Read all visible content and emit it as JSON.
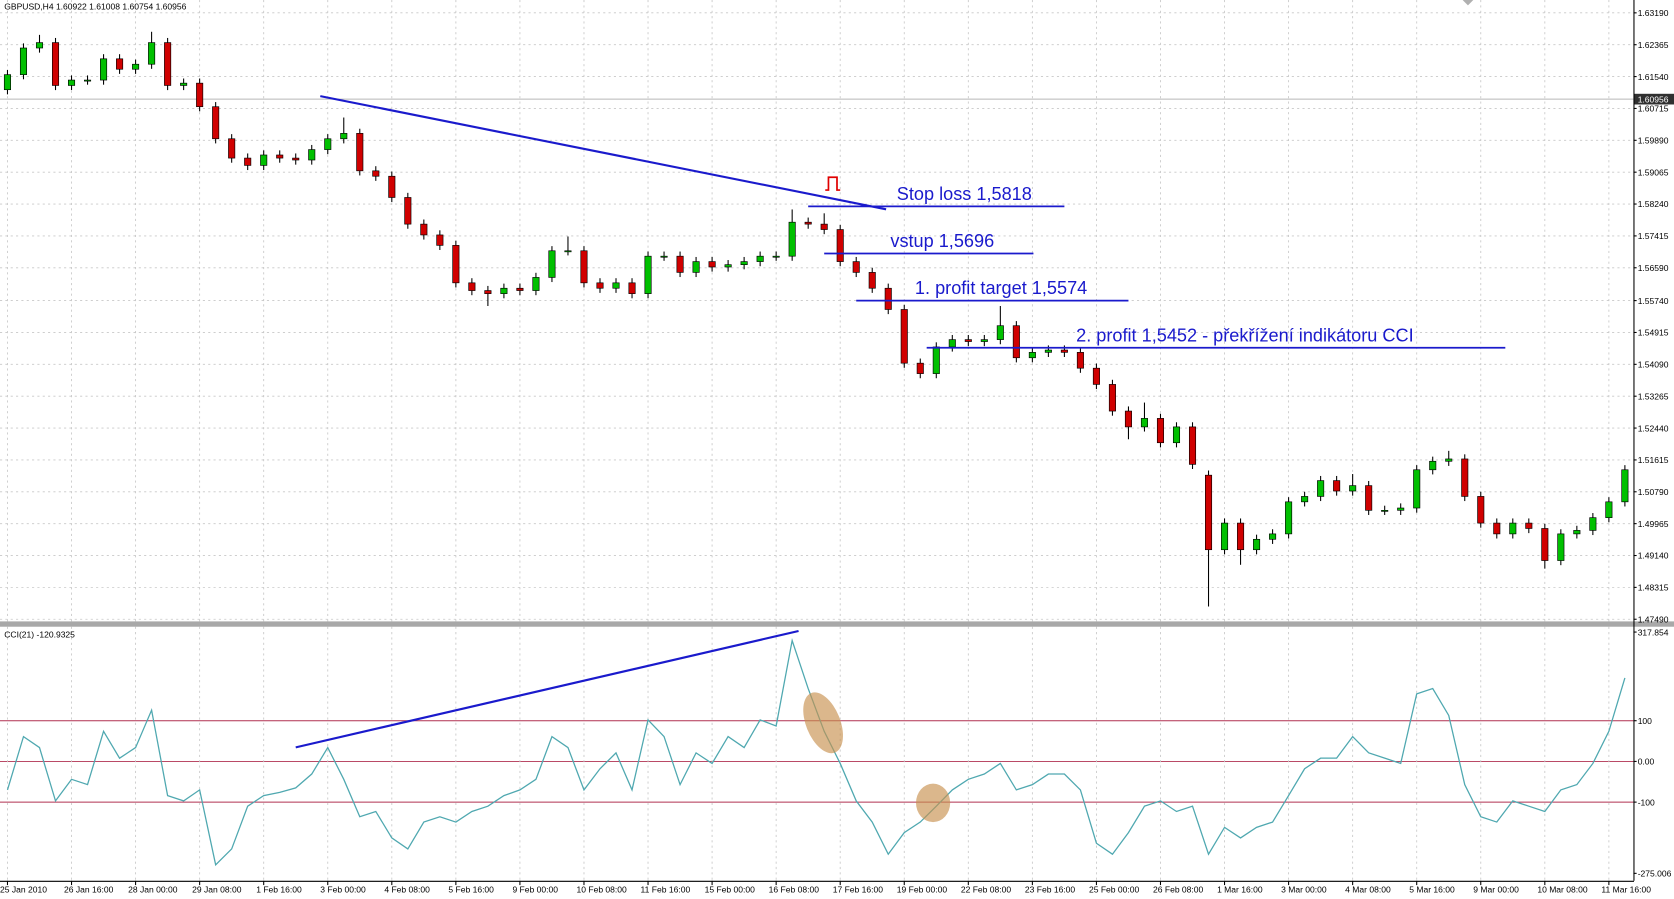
{
  "chart_data": [
    {
      "type": "candlestick",
      "title": "GBPUSD,H4  1.60922 1.61008 1.60754 1.60956",
      "up_color": "#00c000",
      "down_color": "#d00000",
      "wick_color": "#000000",
      "ylim": [
        1.4749,
        1.6319
      ],
      "yticks": [
        {
          "value": 1.6319,
          "label": "1.63190"
        },
        1.62365,
        {
          "value": 1.6154,
          "label": "1.61540"
        },
        1.60715,
        {
          "value": 1.5989,
          "label": "1.59890"
        },
        1.59065,
        {
          "value": 1.5824,
          "label": "1.58240"
        },
        1.57415,
        {
          "value": 1.5659,
          "label": "1.56590"
        },
        {
          "value": 1.5574,
          "label": "1.55740"
        },
        1.54915,
        {
          "value": 1.5409,
          "label": "1.54090"
        },
        1.53265,
        {
          "value": 1.5244,
          "label": "1.52440"
        },
        1.51615,
        {
          "value": 1.5079,
          "label": "1.50790"
        },
        1.49965,
        {
          "value": 1.4914,
          "label": "1.49140"
        },
        1.48315,
        {
          "value": 1.4749,
          "label": "1.47490"
        }
      ],
      "grid": true,
      "current_price": {
        "value": 1.60956,
        "label": "1.60956"
      },
      "open": [
        1.612,
        1.6159,
        1.6228,
        1.6242,
        1.6131,
        1.6145,
        1.6145,
        1.62,
        1.6173,
        1.6186,
        1.6242,
        1.6131,
        1.6137,
        1.6076,
        1.5993,
        1.5943,
        1.5924,
        1.5951,
        1.5943,
        1.5938,
        1.5965,
        1.5993,
        1.6007,
        1.591,
        1.5896,
        1.5841,
        1.5772,
        1.5744,
        1.5717,
        1.562,
        1.56,
        1.5592,
        1.5606,
        1.56,
        1.5634,
        1.5703,
        1.5703,
        1.562,
        1.5606,
        1.562,
        1.5592,
        1.5689,
        1.5689,
        1.5647,
        1.5675,
        1.5661,
        1.5667,
        1.5675,
        1.5689,
        1.5689,
        1.5777,
        1.5772,
        1.5758,
        1.5675,
        1.5647,
        1.5606,
        1.5551,
        1.5412,
        1.5385,
        1.5454,
        1.5473,
        1.5468,
        1.5473,
        1.5509,
        1.5426,
        1.544,
        1.5446,
        1.544,
        1.5399,
        1.5357,
        1.5288,
        1.5247,
        1.5269,
        1.5206,
        1.5247,
        1.5122,
        1.4929,
        1.4998,
        1.4929,
        1.4956,
        1.497,
        1.5053,
        1.5067,
        1.5108,
        1.5081,
        1.5095,
        1.5031,
        1.5031,
        1.5037,
        1.5136,
        1.5158,
        1.5164,
        1.5067,
        1.4998,
        1.497,
        1.4998,
        1.4984,
        1.4901,
        1.497,
        1.4979,
        1.5012,
        1.5053
      ],
      "high": [
        1.6171,
        1.624,
        1.6262,
        1.6254,
        1.6157,
        1.6157,
        1.6212,
        1.6212,
        1.6198,
        1.627,
        1.6254,
        1.6149,
        1.6149,
        1.6088,
        1.6005,
        1.5955,
        1.5963,
        1.5963,
        1.5955,
        1.5977,
        1.6005,
        1.6048,
        1.6019,
        1.5922,
        1.5908,
        1.5853,
        1.5784,
        1.5756,
        1.5729,
        1.5632,
        1.5612,
        1.5618,
        1.5618,
        1.5646,
        1.5715,
        1.574,
        1.5715,
        1.5632,
        1.5632,
        1.5632,
        1.5701,
        1.5701,
        1.5701,
        1.5687,
        1.5687,
        1.5679,
        1.5687,
        1.5701,
        1.5701,
        1.581,
        1.5789,
        1.58,
        1.577,
        1.5687,
        1.5659,
        1.5618,
        1.5563,
        1.5424,
        1.5466,
        1.5485,
        1.5485,
        1.5485,
        1.556,
        1.5521,
        1.5452,
        1.5458,
        1.5458,
        1.5452,
        1.5411,
        1.5369,
        1.53,
        1.531,
        1.5281,
        1.5259,
        1.5259,
        1.5134,
        1.501,
        1.501,
        1.4968,
        1.4982,
        1.5065,
        1.5079,
        1.512,
        1.512,
        1.5125,
        1.5107,
        1.5043,
        1.5049,
        1.5148,
        1.517,
        1.5185,
        1.5176,
        1.5079,
        1.501,
        1.501,
        1.501,
        1.4996,
        1.4982,
        1.4991,
        1.5024,
        1.5065,
        1.5148
      ],
      "low": [
        1.6108,
        1.6147,
        1.6216,
        1.6119,
        1.6119,
        1.6133,
        1.6133,
        1.6161,
        1.6161,
        1.6174,
        1.6119,
        1.6119,
        1.6064,
        1.5981,
        1.5931,
        1.5912,
        1.5912,
        1.5931,
        1.5926,
        1.5926,
        1.5953,
        1.5981,
        1.5898,
        1.5884,
        1.5829,
        1.576,
        1.5732,
        1.5705,
        1.5608,
        1.5588,
        1.556,
        1.558,
        1.5588,
        1.5588,
        1.5622,
        1.5691,
        1.5608,
        1.5594,
        1.5594,
        1.558,
        1.558,
        1.5677,
        1.5635,
        1.5635,
        1.5649,
        1.5649,
        1.5655,
        1.5663,
        1.5677,
        1.5677,
        1.576,
        1.5746,
        1.5663,
        1.5635,
        1.5594,
        1.5539,
        1.54,
        1.5373,
        1.5373,
        1.5442,
        1.5456,
        1.5456,
        1.5461,
        1.5414,
        1.5414,
        1.5428,
        1.5428,
        1.5387,
        1.5345,
        1.5276,
        1.5215,
        1.5235,
        1.5194,
        1.5194,
        1.5138,
        1.4782,
        1.4917,
        1.489,
        1.4917,
        1.4944,
        1.4958,
        1.5041,
        1.5055,
        1.5069,
        1.5069,
        1.5019,
        1.5019,
        1.5019,
        1.5025,
        1.5124,
        1.5146,
        1.5055,
        1.4986,
        1.4958,
        1.4958,
        1.4972,
        1.488,
        1.4889,
        1.4958,
        1.4967,
        1.5,
        1.5041
      ],
      "close": [
        1.6159,
        1.6228,
        1.6242,
        1.6131,
        1.6145,
        1.6145,
        1.62,
        1.6173,
        1.6186,
        1.6242,
        1.6131,
        1.6137,
        1.6076,
        1.5993,
        1.5943,
        1.5924,
        1.5951,
        1.5943,
        1.5938,
        1.5965,
        1.5993,
        1.6007,
        1.591,
        1.5896,
        1.5841,
        1.5772,
        1.5744,
        1.5717,
        1.562,
        1.56,
        1.5592,
        1.5606,
        1.56,
        1.5634,
        1.5703,
        1.5703,
        1.562,
        1.5606,
        1.562,
        1.5592,
        1.5689,
        1.5689,
        1.5647,
        1.5675,
        1.5661,
        1.5667,
        1.5675,
        1.5689,
        1.5689,
        1.5777,
        1.5772,
        1.5758,
        1.5675,
        1.5647,
        1.5606,
        1.5551,
        1.5412,
        1.5385,
        1.5454,
        1.5473,
        1.5468,
        1.5473,
        1.5509,
        1.5426,
        1.544,
        1.5446,
        1.544,
        1.5399,
        1.5357,
        1.5288,
        1.5247,
        1.5269,
        1.5206,
        1.5247,
        1.515,
        1.4929,
        1.4998,
        1.4929,
        1.4956,
        1.497,
        1.5053,
        1.5067,
        1.5108,
        1.5081,
        1.5095,
        1.5031,
        1.5031,
        1.5037,
        1.5136,
        1.5158,
        1.5164,
        1.5067,
        1.4998,
        1.497,
        1.4998,
        1.4984,
        1.4901,
        1.497,
        1.4979,
        1.5012,
        1.5053,
        1.5136
      ],
      "annotation_color": "#1a1acc",
      "annotations": [
        {
          "text": "Stop loss 1,5818",
          "level": 1.5818
        },
        {
          "text": "vstup 1,5696",
          "level": 1.5696
        },
        {
          "text": "1. profit target 1,5574",
          "level": 1.5574
        },
        {
          "text": "2. profit 1,5452 - překřížení indikátoru CCI",
          "level": 1.5452
        }
      ]
    },
    {
      "type": "line",
      "title": "CCI(21) -120.9325",
      "color": "#4fa8b0",
      "ylim": [
        -275.006,
        317.854
      ],
      "yticks": [
        317.854,
        100,
        {
          "value": 0,
          "label": "0.00"
        },
        -100,
        -275.006
      ],
      "levels": [
        100,
        0,
        -100
      ],
      "level_color": "#b03050",
      "values": [
        -70,
        61,
        34,
        -97,
        -44,
        -57,
        74,
        8,
        34,
        126,
        -84,
        -97,
        -70,
        -254,
        -215,
        -110,
        -84,
        -76,
        -65,
        -31,
        34,
        -44,
        -136,
        -123,
        -188,
        -215,
        -149,
        -136,
        -149,
        -123,
        -110,
        -84,
        -70,
        -44,
        61,
        34,
        -70,
        -18,
        21,
        -70,
        102,
        61,
        -57,
        21,
        -5,
        61,
        34,
        102,
        87,
        297,
        179,
        74,
        -5,
        -97,
        -149,
        -228,
        -175,
        -149,
        -110,
        -70,
        -44,
        -31,
        -5,
        -70,
        -57,
        -31,
        -31,
        -70,
        -201,
        -228,
        -175,
        -110,
        -97,
        -123,
        -110,
        -228,
        -162,
        -188,
        -162,
        -149,
        -84,
        -18,
        8,
        8,
        61,
        21,
        8,
        -5,
        166,
        179,
        113,
        -57,
        -136,
        -149,
        -97,
        -110,
        -123,
        -70,
        -57,
        -5,
        74,
        205
      ],
      "xticks": [
        {
          "value": 0,
          "label": "25 Jan 2010"
        },
        {
          "value": 4,
          "label": "26 Jan 16:00"
        },
        {
          "value": 8,
          "label": "28 Jan 00:00"
        },
        {
          "value": 12,
          "label": "29 Jan 08:00"
        },
        {
          "value": 16,
          "label": "1 Feb 16:00"
        },
        {
          "value": 20,
          "label": "3 Feb 00:00"
        },
        {
          "value": 24,
          "label": "4 Feb 08:00"
        },
        {
          "value": 28,
          "label": "5 Feb 16:00"
        },
        {
          "value": 32,
          "label": "9 Feb 00:00"
        },
        {
          "value": 36,
          "label": "10 Feb 08:00"
        },
        {
          "value": 40,
          "label": "11 Feb 16:00"
        },
        {
          "value": 44,
          "label": "15 Feb 00:00"
        },
        {
          "value": 48,
          "label": "16 Feb 08:00"
        },
        {
          "value": 52,
          "label": "17 Feb 16:00"
        },
        {
          "value": 56,
          "label": "19 Feb 00:00"
        },
        {
          "value": 60,
          "label": "22 Feb 08:00"
        },
        {
          "value": 64,
          "label": "23 Feb 16:00"
        },
        {
          "value": 68,
          "label": "25 Feb 00:00"
        },
        {
          "value": 72,
          "label": "26 Feb 08:00"
        },
        {
          "value": 76,
          "label": "1 Mar 16:00"
        },
        {
          "value": 80,
          "label": "3 Mar 00:00"
        },
        {
          "value": 84,
          "label": "4 Mar 08:00"
        },
        {
          "value": 88,
          "label": "5 Mar 16:00"
        },
        {
          "value": 92,
          "label": "9 Mar 00:00"
        },
        {
          "value": 96,
          "label": "10 Mar 08:00"
        },
        {
          "value": 100,
          "label": "11 Mar 16:00"
        }
      ]
    }
  ]
}
